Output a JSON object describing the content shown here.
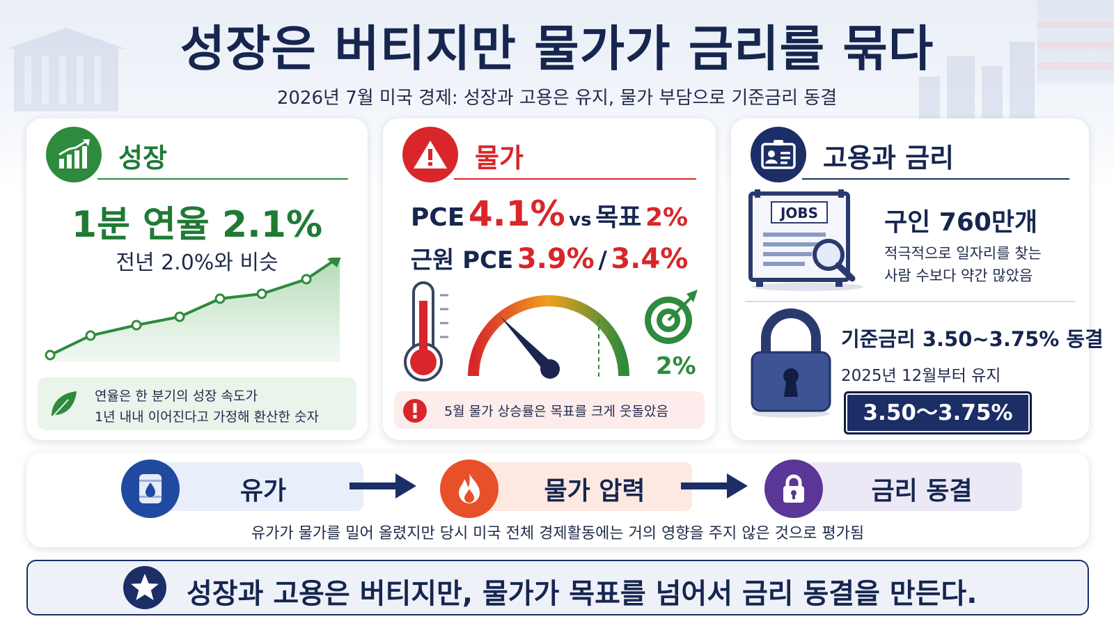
{
  "title": "성장은 버티지만 물가가 금리를 묶다",
  "subtitle": "2026년 7월 미국 경제:  성장과 고용은 유지, 물가 부담으로 기준금리 동결",
  "growth": {
    "title": "성장",
    "headline": "1분 연율 2.1%",
    "sub": "전년 2.0%와 비슷",
    "note_line1": "연율은 한 분기의 성장 속도가",
    "note_line2": "1년 내내 이어진다고 가정해 환산한 숫자",
    "accent": "#2e8a3c"
  },
  "price": {
    "title": "물가",
    "pce_label": "PCE",
    "pce_value": "4.1%",
    "vs_label": "vs",
    "target_label": "목표",
    "target_value": "2%",
    "core_label": "근원 PCE",
    "core_value1": "3.9%",
    "core_sep": "/",
    "core_value2": "3.4%",
    "gauge_target_label": "2%",
    "note": "5월 물가 상승률은 목표를 크게 웃돌았음",
    "accent": "#d8262a"
  },
  "jobs": {
    "title": "고용과 금리",
    "board_label": "JOBS",
    "openings": "구인 760만개",
    "desc_line1": "적극적으로 일자리를 찾는",
    "desc_line2": "사람 수보다 약간 많았음",
    "rate_text": "기준금리 3.50~3.75% 동결",
    "since": "2025년 12월부터 유지",
    "rate_badge": "3.50～3.75%",
    "accent": "#1b2e66"
  },
  "flow": {
    "step1": "유가",
    "step2": "물가 압력",
    "step3": "금리 동결",
    "note": "유가가 물가를 밀어 올렸지만 당시 미국 전체 경제활동에는 거의 영향을 주지 않은 것으로 평가됨"
  },
  "conclusion": "성장과 고용은 버티지만, 물가가 목표를 넘어서 금리 동결을 만든다."
}
